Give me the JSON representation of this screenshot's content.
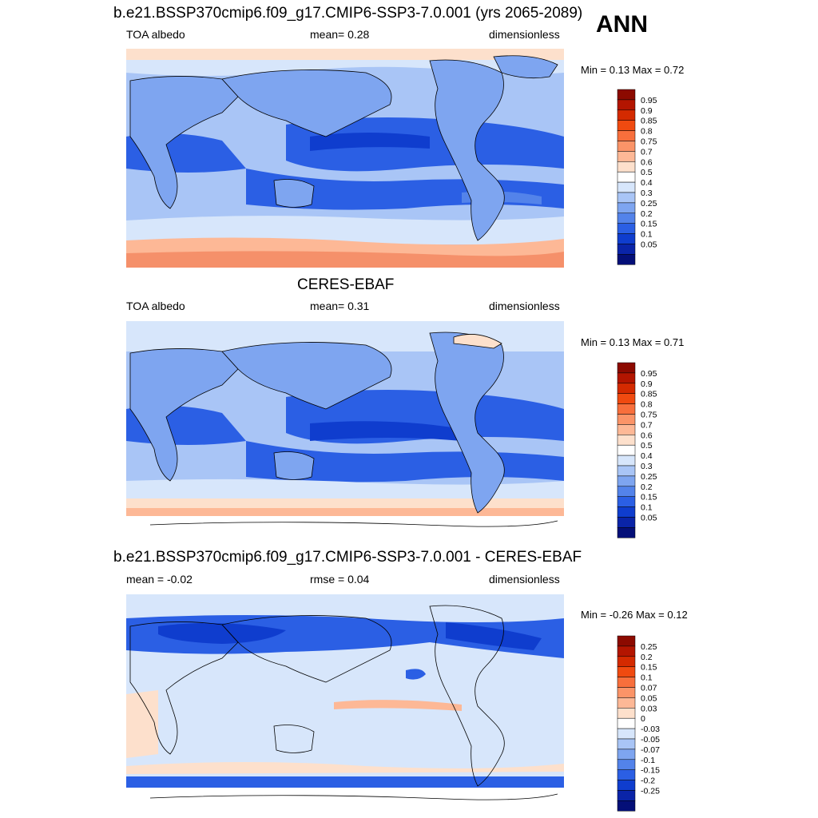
{
  "season": "ANN",
  "panels": [
    {
      "id": "model",
      "title": "b.e21.BSSP370cmip6.f09_g17.CMIP6-SSP3-7.0.001 (yrs 2065-2089)",
      "left_label": "TOA albedo",
      "center_label": "mean=   0.28",
      "right_label": "dimensionless",
      "minmax": "Min =   0.13 Max =   0.72",
      "colorbar_labels": [
        "0.95",
        "0.9",
        "0.85",
        "0.8",
        "0.75",
        "0.7",
        "0.6",
        "0.5",
        "0.4",
        "0.3",
        "0.25",
        "0.2",
        "0.15",
        "0.1",
        "0.05"
      ],
      "colorbar_colors": [
        "#8c0a00",
        "#b31500",
        "#d42a00",
        "#f04a10",
        "#f86f3c",
        "#fb9468",
        "#fdb896",
        "#fde0cc",
        "#ffffff",
        "#d7e6fb",
        "#a9c5f6",
        "#7ea5f0",
        "#5383ea",
        "#2b5fe4",
        "#0f3dce",
        "#0a24a8",
        "#040f78"
      ]
    },
    {
      "id": "obs",
      "title": "CERES-EBAF",
      "left_label": "TOA albedo",
      "center_label": "mean=   0.31",
      "right_label": "dimensionless",
      "minmax": "Min =   0.13 Max =   0.71",
      "colorbar_labels": [
        "0.95",
        "0.9",
        "0.85",
        "0.8",
        "0.75",
        "0.7",
        "0.6",
        "0.5",
        "0.4",
        "0.3",
        "0.25",
        "0.2",
        "0.15",
        "0.1",
        "0.05"
      ],
      "colorbar_colors": [
        "#8c0a00",
        "#b31500",
        "#d42a00",
        "#f04a10",
        "#f86f3c",
        "#fb9468",
        "#fdb896",
        "#fde0cc",
        "#ffffff",
        "#d7e6fb",
        "#a9c5f6",
        "#7ea5f0",
        "#5383ea",
        "#2b5fe4",
        "#0f3dce",
        "#0a24a8",
        "#040f78"
      ]
    },
    {
      "id": "diff",
      "title": "b.e21.BSSP370cmip6.f09_g17.CMIP6-SSP3-7.0.001 - CERES-EBAF",
      "left_label": "mean =   -0.02",
      "center_label": "rmse =   0.04",
      "right_label": "dimensionless",
      "minmax": "Min =  -0.26 Max =   0.12",
      "colorbar_labels": [
        "0.25",
        "0.2",
        "0.15",
        "0.1",
        "0.07",
        "0.05",
        "0.03",
        "0",
        "-0.03",
        "-0.05",
        "-0.07",
        "-0.1",
        "-0.15",
        "-0.2",
        "-0.25"
      ],
      "colorbar_colors": [
        "#8c0a00",
        "#b31500",
        "#d42a00",
        "#f04a10",
        "#f86f3c",
        "#fb9468",
        "#fdb896",
        "#fde0cc",
        "#ffffff",
        "#d7e6fb",
        "#a9c5f6",
        "#7ea5f0",
        "#5383ea",
        "#2b5fe4",
        "#0f3dce",
        "#0a24a8",
        "#040f78"
      ]
    }
  ],
  "palette": {
    "deep_blue": "#1a45d8",
    "mid_blue": "#4c7ff0",
    "light_blue": "#a9c5f6",
    "pale_blue": "#d7e6fb",
    "white": "#ffffff",
    "pale_orange": "#fde0cc",
    "light_orange": "#fdb896",
    "orange": "#f5906a",
    "red": "#d42a00",
    "land_line": "#000000"
  }
}
